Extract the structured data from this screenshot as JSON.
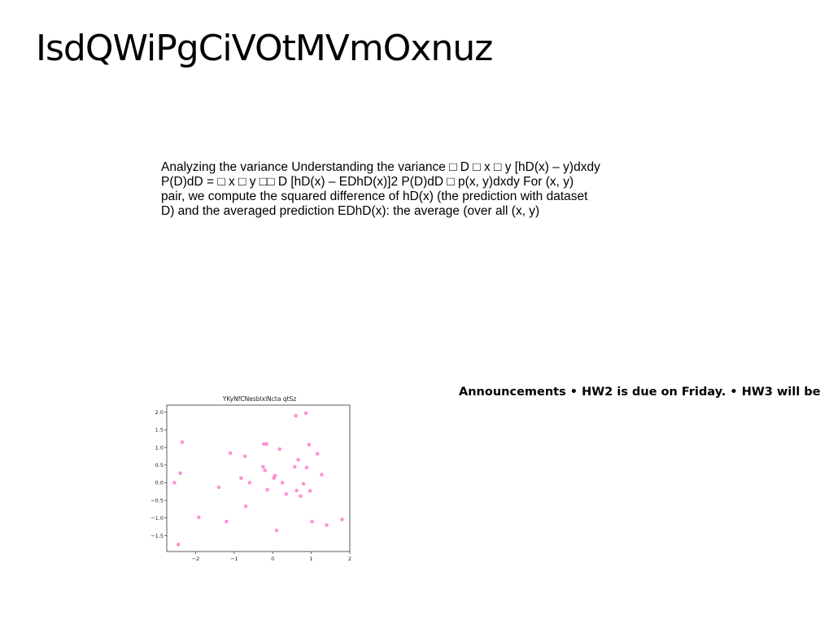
{
  "slide": {
    "title": "IsdQWiPgCiVOtMVmOxnuz",
    "body": "Analyzing the variance Understanding the variance □ D □ x □ y [hD(x) – y)dxdy P(D)dD = □ x □ y □□ D [hD(x) – EDhD(x)]2 P(D)dD □ p(x, y)dxdy For (x, y) pair, we compute the squared difference of hD(x) (the prediction with dataset D) and the averaged prediction EDhD(x): the average (over all (x, y)",
    "announcements": "Announcements • HW2 is due on Friday. • HW3 will be"
  },
  "chart_data": {
    "type": "scatter",
    "title": "YKyNfCNesblxlNcta qtSz",
    "xlabel": "",
    "ylabel": "",
    "xlim": [
      -2.75,
      2.0
    ],
    "ylim": [
      -1.95,
      2.2
    ],
    "xticks": [
      -2,
      -1,
      0,
      1,
      2
    ],
    "xtick_labels": [
      "−2",
      "−1",
      "0",
      "1",
      "2"
    ],
    "yticks": [
      -1.5,
      -1.0,
      -0.5,
      0.0,
      0.5,
      1.0,
      1.5,
      2.0
    ],
    "ytick_labels": [
      "−1.5",
      "−1.0",
      "−0.5",
      "0.0",
      "0.5",
      "1.0",
      "1.5",
      "2.0"
    ],
    "grid": false,
    "marker_color": "#ff7fcf",
    "points": [
      {
        "x": -2.55,
        "y": 0.0
      },
      {
        "x": -2.45,
        "y": -1.75
      },
      {
        "x": -2.4,
        "y": 0.27
      },
      {
        "x": -2.35,
        "y": 1.15
      },
      {
        "x": -1.92,
        "y": -0.98
      },
      {
        "x": -1.4,
        "y": -0.13
      },
      {
        "x": -1.2,
        "y": -1.1
      },
      {
        "x": -1.1,
        "y": 0.84
      },
      {
        "x": -0.82,
        "y": 0.13
      },
      {
        "x": -0.72,
        "y": 0.75
      },
      {
        "x": -0.7,
        "y": -0.67
      },
      {
        "x": -0.6,
        "y": 0.0
      },
      {
        "x": -0.25,
        "y": 0.45
      },
      {
        "x": -0.23,
        "y": 1.1
      },
      {
        "x": -0.2,
        "y": 0.35
      },
      {
        "x": -0.16,
        "y": 1.1
      },
      {
        "x": -0.14,
        "y": -0.2
      },
      {
        "x": 0.03,
        "y": 0.13
      },
      {
        "x": 0.06,
        "y": 0.2
      },
      {
        "x": 0.1,
        "y": -1.35
      },
      {
        "x": 0.18,
        "y": 0.95
      },
      {
        "x": 0.25,
        "y": 0.0
      },
      {
        "x": 0.35,
        "y": -0.32
      },
      {
        "x": 0.57,
        "y": 0.45
      },
      {
        "x": 0.6,
        "y": 1.9
      },
      {
        "x": 0.62,
        "y": -0.22
      },
      {
        "x": 0.66,
        "y": 0.65
      },
      {
        "x": 0.72,
        "y": -0.38
      },
      {
        "x": 0.8,
        "y": -0.03
      },
      {
        "x": 0.86,
        "y": 1.97
      },
      {
        "x": 0.88,
        "y": 0.43
      },
      {
        "x": 0.94,
        "y": 1.08
      },
      {
        "x": 0.97,
        "y": -0.23
      },
      {
        "x": 1.02,
        "y": -1.1
      },
      {
        "x": 1.16,
        "y": 0.82
      },
      {
        "x": 1.27,
        "y": 0.23
      },
      {
        "x": 1.4,
        "y": -1.2
      },
      {
        "x": 1.8,
        "y": -1.04
      }
    ]
  }
}
